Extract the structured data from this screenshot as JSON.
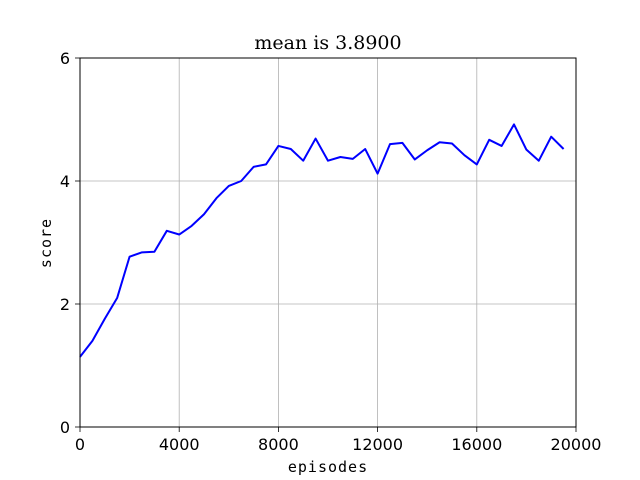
{
  "chart_data": {
    "type": "line",
    "title": "mean is 3.8900",
    "xlabel": "episodes",
    "ylabel": "score",
    "xlim": [
      0,
      20000
    ],
    "ylim": [
      0,
      6
    ],
    "xticks": [
      "0",
      "4000",
      "8000",
      "12000",
      "16000",
      "20000"
    ],
    "yticks": [
      "0",
      "2",
      "4",
      "6"
    ],
    "grid": true,
    "series": [
      {
        "color": "#0000ff",
        "x": [
          0,
          500,
          1000,
          1500,
          2000,
          2500,
          3000,
          3500,
          4000,
          4500,
          5000,
          5500,
          6000,
          6500,
          7000,
          7500,
          8000,
          8500,
          9000,
          9500,
          10000,
          10500,
          11000,
          11500,
          12000,
          12500,
          13000,
          13500,
          14000,
          14500,
          15000,
          15500,
          16000,
          16500,
          17000,
          17500,
          18000,
          18500,
          19000,
          19500
        ],
        "y": [
          1.14,
          1.4,
          1.76,
          2.1,
          2.77,
          2.84,
          2.85,
          3.19,
          3.13,
          3.27,
          3.46,
          3.72,
          3.92,
          4.0,
          4.23,
          4.27,
          4.57,
          4.52,
          4.33,
          4.69,
          4.33,
          4.39,
          4.36,
          4.52,
          4.12,
          4.6,
          4.62,
          4.35,
          4.5,
          4.63,
          4.61,
          4.42,
          4.27,
          4.67,
          4.57,
          4.92,
          4.51,
          4.33,
          4.72,
          4.52
        ]
      }
    ]
  }
}
